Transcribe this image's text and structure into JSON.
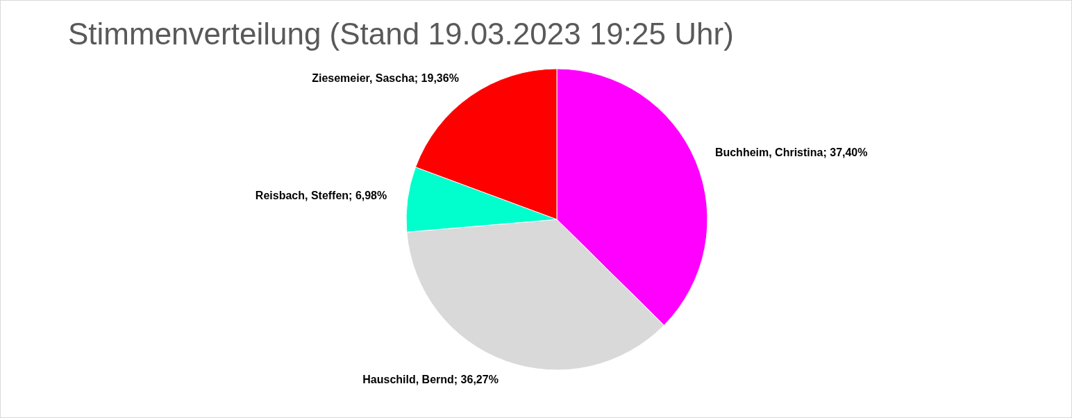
{
  "chart_data": {
    "type": "pie",
    "title": "Stimmenverteilung (Stand 19.03.2023 19:25 Uhr)",
    "categories": [
      "Buchheim, Christina",
      "Hauschild, Bernd",
      "Reisbach, Steffen",
      "Ziesemeier, Sascha"
    ],
    "values": [
      37.4,
      36.27,
      6.98,
      19.36
    ],
    "value_labels": [
      "37,40%",
      "36,27%",
      "6,98%",
      "19,36%"
    ],
    "colors": [
      "#ff00ff",
      "#d9d9d9",
      "#00ffcc",
      "#ff0000"
    ],
    "legend": false
  }
}
